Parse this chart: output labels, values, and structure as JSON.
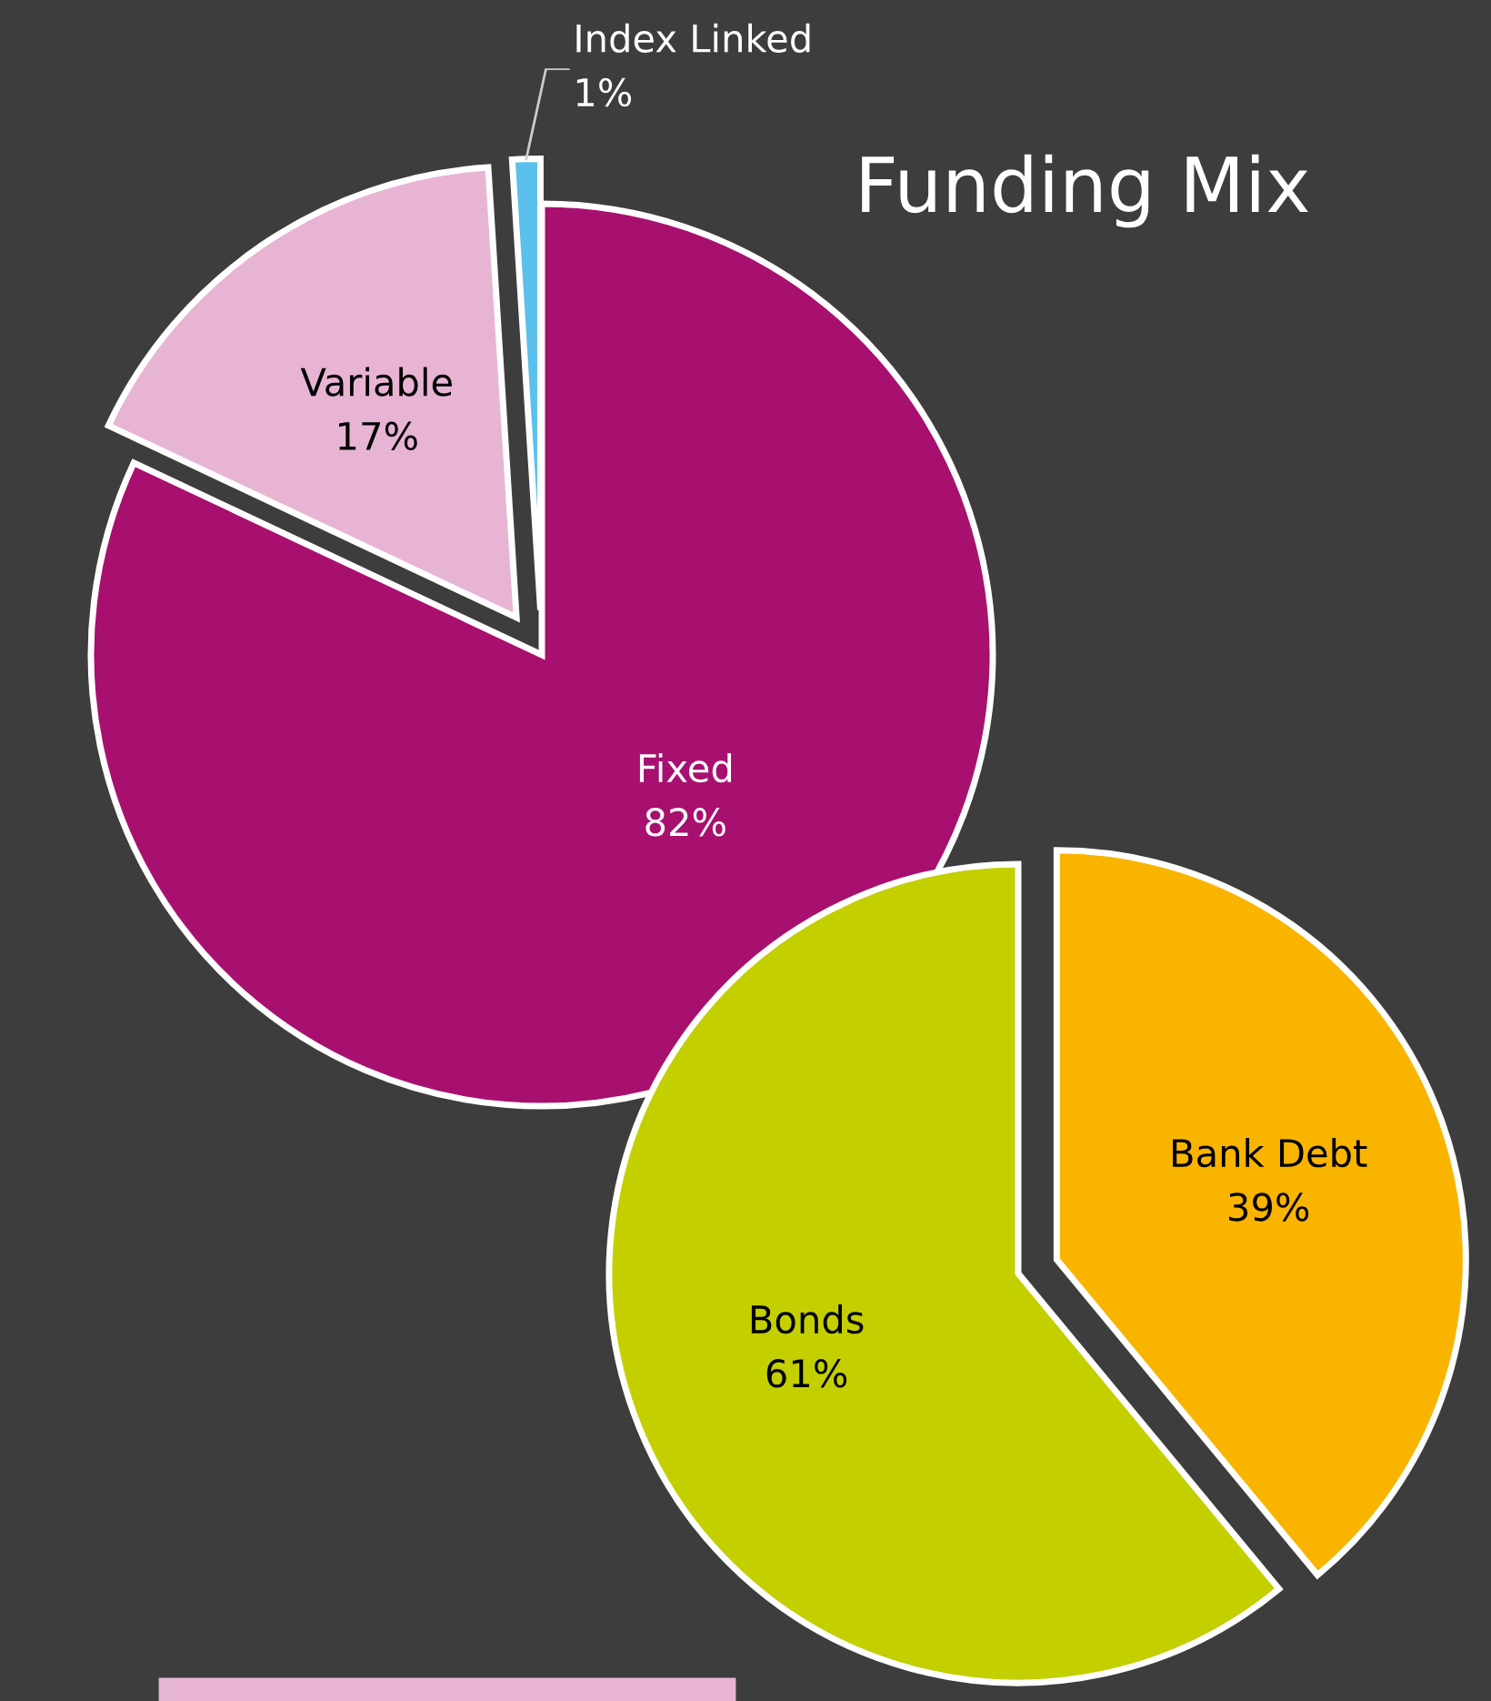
{
  "chart_data": [
    {
      "type": "pie",
      "title": "Funding Mix",
      "categories": [
        "Fixed",
        "Variable",
        "Index Linked"
      ],
      "values": [
        82,
        17,
        1
      ],
      "value_labels": [
        "82%",
        "17%",
        "1%"
      ],
      "colors": [
        "#a8106f",
        "#e8b4d4",
        "#5bc0eb"
      ]
    },
    {
      "type": "pie",
      "categories": [
        "Bank Debt",
        "Bonds"
      ],
      "values": [
        39,
        61
      ],
      "value_labels": [
        "39%",
        "61%"
      ],
      "colors": [
        "#f9b400",
        "#c4cf00"
      ]
    }
  ]
}
